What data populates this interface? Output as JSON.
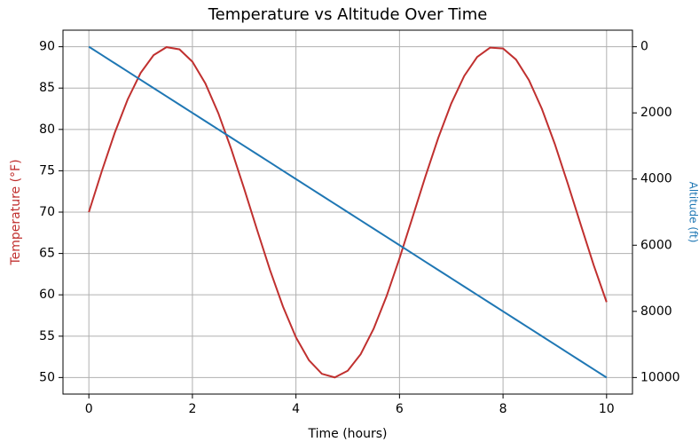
{
  "chart_data": {
    "type": "line",
    "title": "Temperature vs Altitude Over Time",
    "xlabel": "Time (hours)",
    "ylabel": "Temperature (°F)",
    "y2label": "Altitude (ft)",
    "ylabel_color": "#c0302f",
    "y2label_color": "#1f77b4",
    "x": [
      0,
      0.25,
      0.5,
      0.75,
      1,
      1.25,
      1.5,
      1.75,
      2,
      2.25,
      2.5,
      2.75,
      3,
      3.25,
      3.5,
      3.75,
      4,
      4.25,
      4.5,
      4.75,
      5,
      5.25,
      5.5,
      5.75,
      6,
      6.25,
      6.5,
      6.75,
      7,
      7.25,
      7.5,
      7.75,
      8,
      8.25,
      8.5,
      8.75,
      9,
      9.25,
      9.5,
      9.75,
      10
    ],
    "series": [
      {
        "name": "Temperature (°F)",
        "color": "#c0302f",
        "axis": "y",
        "values": [
          70,
          74.95,
          79.59,
          83.63,
          86.83,
          88.98,
          89.95,
          89.68,
          88.19,
          85.56,
          81.97,
          77.63,
          72.82,
          67.84,
          62.98,
          58.57,
          54.86,
          52.1,
          50.45,
          50.01,
          50.82,
          52.82,
          55.89,
          59.83,
          64.41,
          69.34,
          74.3,
          79,
          83.14,
          86.46,
          88.76,
          89.89,
          89.79,
          88.45,
          85.97,
          82.49,
          78.24,
          73.45,
          68.5,
          63.61,
          59.12
        ]
      },
      {
        "name": "Altitude (ft)",
        "color": "#1f77b4",
        "axis": "y2",
        "values": [
          0,
          250,
          500,
          750,
          1000,
          1250,
          1500,
          1750,
          2000,
          2250,
          2500,
          2750,
          3000,
          3250,
          3500,
          3750,
          4000,
          4250,
          4500,
          4750,
          5000,
          5250,
          5500,
          5750,
          6000,
          6250,
          6500,
          6750,
          7000,
          7250,
          7500,
          7750,
          8000,
          8250,
          8500,
          8750,
          9000,
          9250,
          9500,
          9750,
          10000
        ]
      }
    ],
    "xlim": [
      -0.5,
      10.5
    ],
    "xticks": [
      0,
      2,
      4,
      6,
      8,
      10
    ],
    "ylim": [
      48,
      92
    ],
    "yticks": [
      50,
      55,
      60,
      65,
      70,
      75,
      80,
      85,
      90
    ],
    "y2lim": [
      10500,
      -500
    ],
    "y2ticks": [
      0,
      2000,
      4000,
      6000,
      8000,
      10000
    ],
    "grid": true
  }
}
